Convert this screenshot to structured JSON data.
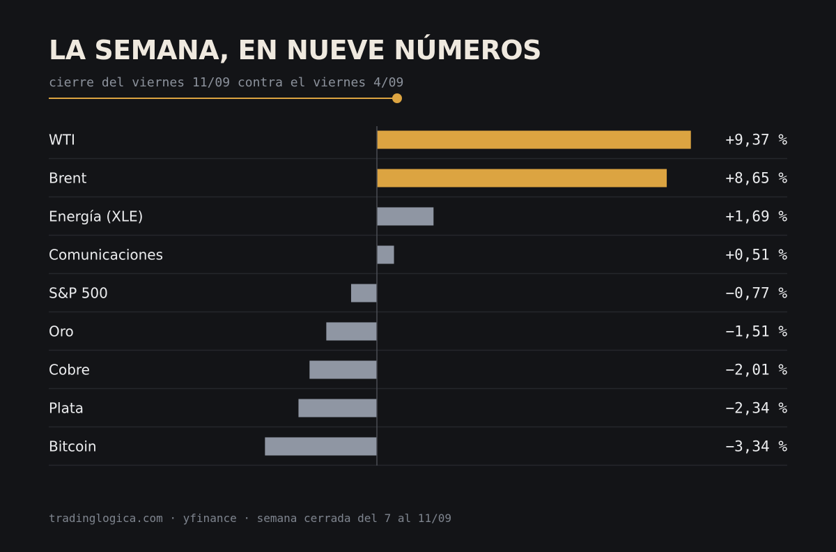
{
  "header": {
    "title": "LA SEMANA, EN NUEVE NÚMEROS",
    "subtitle": "cierre del viernes 11/09 contra el viernes 4/09"
  },
  "footer": {
    "text": "tradinglogica.com · yfinance · semana cerrada del 7 al 11/09"
  },
  "colors": {
    "background": "#131417",
    "accent": "#dca441",
    "bar_neutral": "#8f96a3",
    "row_divider": "#25272c",
    "zero_line": "#4a4d54"
  },
  "chart_data": {
    "type": "bar",
    "orientation": "horizontal",
    "unit": "%",
    "categories": [
      "WTI",
      "Brent",
      "Energía (XLE)",
      "Comunicaciones",
      "S&P 500",
      "Oro",
      "Cobre",
      "Plata",
      "Bitcoin"
    ],
    "values": [
      9.37,
      8.65,
      1.69,
      0.51,
      -0.77,
      -1.51,
      -2.01,
      -2.34,
      -3.34
    ],
    "value_labels": [
      "+9,37 %",
      "+8,65 %",
      "+1,69 %",
      "+0,51 %",
      "−0,77 %",
      "−1,51 %",
      "−2,01 %",
      "−2,34 %",
      "−3,34 %"
    ],
    "highlighted": [
      "WTI",
      "Brent"
    ],
    "grid": false,
    "legend": "none"
  }
}
